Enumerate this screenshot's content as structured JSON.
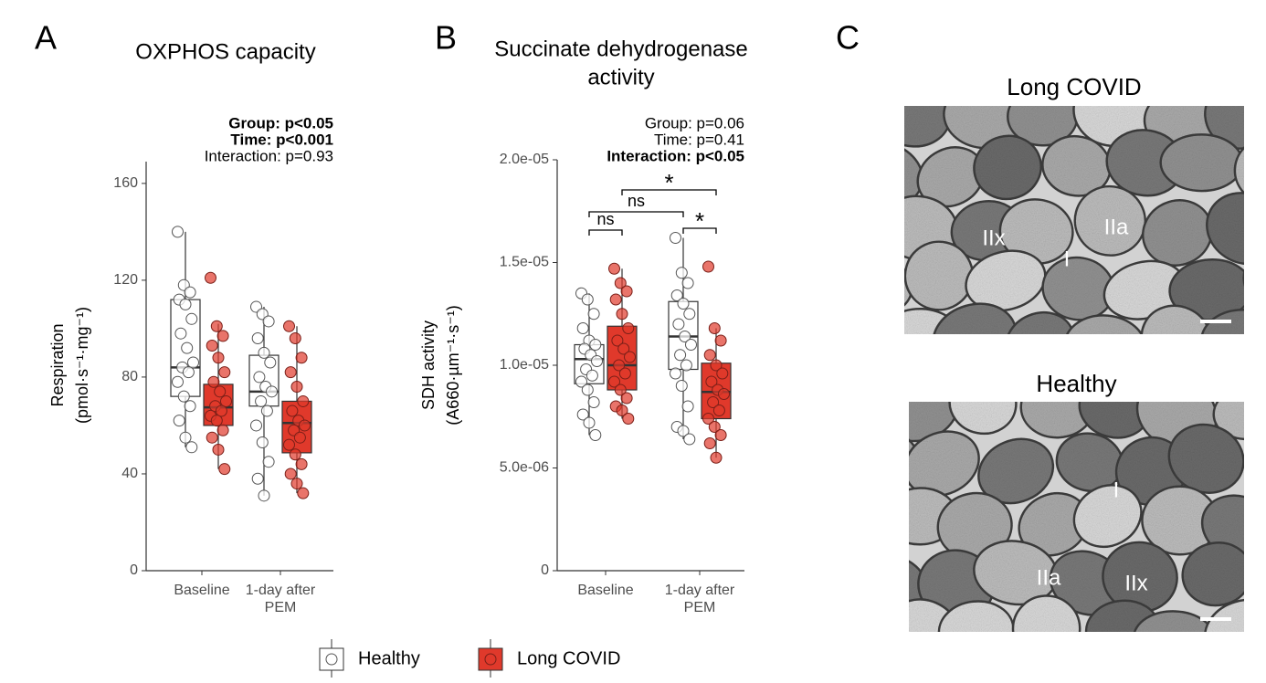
{
  "panel_labels": [
    "A",
    "B",
    "C"
  ],
  "chart_data": [
    {
      "type": "box",
      "title": [
        "OXPHOS capacity"
      ],
      "annotations": [
        {
          "text": "Group: p<0.05",
          "bold": true
        },
        {
          "text": "Time: p<0.001",
          "bold": true
        },
        {
          "text": "Interaction: p=0.93",
          "bold": false
        }
      ],
      "y_label": [
        "Respiration",
        "(pmol·s⁻¹·mg⁻¹)"
      ],
      "categories": [
        [
          "Baseline"
        ],
        [
          "1-day after",
          "PEM"
        ]
      ],
      "ylim": [
        0,
        169
      ],
      "yticks": [
        0,
        40,
        80,
        120,
        160
      ],
      "series": [
        {
          "name": "Healthy",
          "color": "#ffffff",
          "stats": [
            {
              "whislo": 51,
              "q1": 72,
              "med": 84,
              "q3": 112,
              "whishi": 140
            },
            {
              "whislo": 31,
              "q1": 68,
              "med": 74,
              "q3": 89,
              "whishi": 109
            }
          ],
          "points": [
            [
              140,
              118,
              115,
              112,
              110,
              104,
              98,
              92,
              86,
              84,
              82,
              78,
              72,
              68,
              62,
              55,
              51
            ],
            [
              109,
              106,
              103,
              96,
              90,
              86,
              80,
              76,
              74,
              70,
              66,
              60,
              53,
              45,
              38,
              31
            ]
          ]
        },
        {
          "name": "Long COVID",
          "color": "#e0392b",
          "stats": [
            {
              "whislo": 42,
              "q1": 60,
              "med": 67.5,
              "q3": 77,
              "whishi": 102
            },
            {
              "whislo": 32,
              "q1": 48.7,
              "med": 61,
              "q3": 70,
              "whishi": 101
            }
          ],
          "points": [
            [
              121,
              101,
              97,
              93,
              88,
              82,
              78,
              74,
              70,
              68,
              66,
              64,
              62,
              58,
              55,
              50,
              42
            ],
            [
              101,
              96,
              88,
              82,
              76,
              70,
              66,
              62,
              60,
              58,
              55,
              52,
              48,
              44,
              40,
              36,
              32
            ]
          ]
        }
      ]
    },
    {
      "type": "box",
      "title": [
        "Succinate dehydrogenase",
        "activity"
      ],
      "annotations": [
        {
          "text": "Group: p=0.06",
          "bold": false
        },
        {
          "text": "Time: p=0.41",
          "bold": false
        },
        {
          "text": "Interaction: p<0.05",
          "bold": true
        }
      ],
      "y_label": [
        "SDH activity",
        "(A660·µm⁻¹·s⁻¹)"
      ],
      "categories": [
        [
          "Baseline"
        ],
        [
          "1-day after",
          "PEM"
        ]
      ],
      "ylim": [
        0,
        2e-05
      ],
      "yticks": [
        0,
        {
          "value": 5e-06,
          "label": "5.0e-06"
        },
        {
          "value": 1e-05,
          "label": "1.0e-05"
        },
        {
          "value": 1.5e-05,
          "label": "1.5e-05"
        },
        {
          "value": 2e-05,
          "label": "2.0e-05"
        }
      ],
      "comparisons": [
        {
          "label": "ns",
          "groups": [
            [
              0,
              0
            ],
            [
              0,
              1
            ]
          ]
        },
        {
          "label": "*",
          "groups": [
            [
              1,
              0
            ],
            [
              1,
              1
            ]
          ]
        },
        {
          "label": "ns",
          "groups": [
            [
              0,
              0
            ],
            [
              1,
              0
            ]
          ]
        },
        {
          "label": "*",
          "groups": [
            [
              0,
              1
            ],
            [
              1,
              1
            ]
          ]
        }
      ],
      "series": [
        {
          "color": "#ffffff",
          "stats": [
            {
              "whislo": 6.6e-06,
              "q1": 9.1e-06,
              "med": 1.03e-05,
              "q3": 1.1e-05,
              "whishi": 1.35e-05
            },
            {
              "whislo": 6.4e-06,
              "q1": 9.8e-06,
              "med": 1.14e-05,
              "q3": 1.31e-05,
              "whishi": 1.62e-05
            }
          ],
          "points": [
            [
              1.35e-05,
              1.32e-05,
              1.25e-05,
              1.18e-05,
              1.12e-05,
              1.1e-05,
              1.08e-05,
              1.05e-05,
              1.02e-05,
              9.8e-06,
              9.5e-06,
              9.2e-06,
              8.8e-06,
              8.2e-06,
              7.6e-06,
              7.2e-06,
              6.6e-06
            ],
            [
              1.62e-05,
              1.45e-05,
              1.4e-05,
              1.34e-05,
              1.3e-05,
              1.25e-05,
              1.2e-05,
              1.14e-05,
              1.1e-05,
              1.05e-05,
              1e-05,
              9.6e-06,
              9e-06,
              8e-06,
              7e-06,
              6.8e-06,
              6.4e-06
            ]
          ]
        },
        {
          "color": "#e0392b",
          "stats": [
            {
              "whislo": 7.4e-06,
              "q1": 8.8e-06,
              "med": 1e-05,
              "q3": 1.19e-05,
              "whishi": 1.47e-05
            },
            {
              "whislo": 5.5e-06,
              "q1": 7.4e-06,
              "med": 8.7e-06,
              "q3": 1.01e-05,
              "whishi": 1.18e-05
            }
          ],
          "points": [
            [
              1.47e-05,
              1.4e-05,
              1.36e-05,
              1.32e-05,
              1.25e-05,
              1.18e-05,
              1.12e-05,
              1.08e-05,
              1.04e-05,
              1e-05,
              9.6e-06,
              9.2e-06,
              8.8e-06,
              8.4e-06,
              8e-06,
              7.8e-06,
              7.4e-06
            ],
            [
              1.48e-05,
              1.18e-05,
              1.12e-05,
              1.05e-05,
              1e-05,
              9.6e-06,
              9.2e-06,
              8.8e-06,
              8.6e-06,
              8.2e-06,
              7.8e-06,
              7.4e-06,
              7e-06,
              6.6e-06,
              6.2e-06,
              5.5e-06
            ]
          ]
        }
      ]
    }
  ],
  "panel_c": {
    "images": [
      {
        "title": "Long COVID",
        "labels": [
          "IIx",
          "I",
          "IIa"
        ]
      },
      {
        "title": "Healthy",
        "labels": [
          "I",
          "IIa",
          "IIx"
        ]
      }
    ]
  }
}
